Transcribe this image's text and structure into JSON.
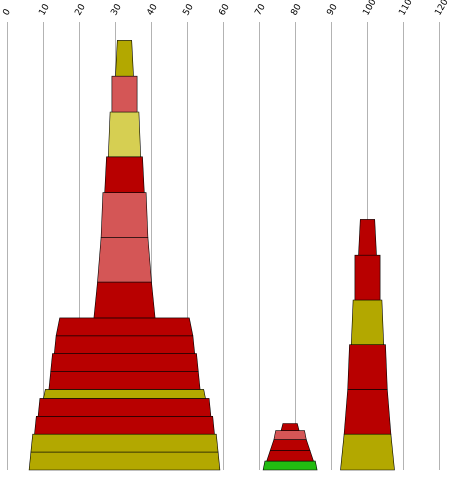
{
  "colors": {
    "dark_red": "#b80000",
    "light_red": "#d45656",
    "olive": "#b3a800",
    "light_olive": "#d6cf52",
    "green": "#22bb11",
    "grid": "#b3b3b3"
  },
  "chart_data": {
    "type": "area",
    "subtype": "stacked trapezoid towers",
    "title": "",
    "xlabel": "",
    "ylabel": "",
    "xlim": [
      0,
      120
    ],
    "x_ticks": [
      "0",
      "10",
      "20",
      "30",
      "40",
      "50",
      "60",
      "70",
      "80",
      "90",
      "100",
      "110",
      "120"
    ],
    "grid": true,
    "legend": "none",
    "stack_units_note": "segment bottom/top widths are in x-axis data units; heights in stack units from baseline",
    "towers": [
      {
        "center": 32.5,
        "segments": [
          {
            "y0": 0.0,
            "y1": 1.0,
            "w0": 53,
            "w1": 52,
            "color": "olive"
          },
          {
            "y0": 1.0,
            "y1": 2.0,
            "w0": 52,
            "w1": 51,
            "color": "olive"
          },
          {
            "y0": 2.0,
            "y1": 3.0,
            "w0": 50,
            "w1": 49,
            "color": "dark_red"
          },
          {
            "y0": 3.0,
            "y1": 4.0,
            "w0": 48,
            "w1": 47,
            "color": "dark_red"
          },
          {
            "y0": 4.0,
            "y1": 4.5,
            "w0": 45,
            "w1": 44,
            "color": "olive"
          },
          {
            "y0": 4.5,
            "y1": 5.5,
            "w0": 42,
            "w1": 41,
            "color": "dark_red"
          },
          {
            "y0": 5.5,
            "y1": 6.5,
            "w0": 41,
            "w1": 40,
            "color": "dark_red"
          },
          {
            "y0": 6.5,
            "y1": 7.5,
            "w0": 39,
            "w1": 38,
            "color": "dark_red"
          },
          {
            "y0": 7.5,
            "y1": 8.5,
            "w0": 38,
            "w1": 36,
            "color": "dark_red"
          },
          {
            "y0": 8.5,
            "y1": 10.5,
            "w0": 17,
            "w1": 15,
            "color": "dark_red"
          },
          {
            "y0": 10.5,
            "y1": 13.0,
            "w0": 15,
            "w1": 13,
            "color": "light_red"
          },
          {
            "y0": 13.0,
            "y1": 15.5,
            "w0": 13,
            "w1": 12,
            "color": "light_red"
          },
          {
            "y0": 15.5,
            "y1": 17.5,
            "w0": 11,
            "w1": 10,
            "color": "dark_red"
          },
          {
            "y0": 17.5,
            "y1": 20.0,
            "w0": 9,
            "w1": 8,
            "color": "light_olive"
          },
          {
            "y0": 20.0,
            "y1": 22.0,
            "w0": 7,
            "w1": 7,
            "color": "light_red"
          },
          {
            "y0": 22.0,
            "y1": 24.0,
            "w0": 5,
            "w1": 4,
            "color": "olive"
          }
        ]
      },
      {
        "center": 78.5,
        "segments": [
          {
            "y0": 0.0,
            "y1": 0.5,
            "w0": 15,
            "w1": 14,
            "color": "green"
          },
          {
            "y0": 0.5,
            "y1": 1.1,
            "w0": 13,
            "w1": 11,
            "color": "dark_red"
          },
          {
            "y0": 1.1,
            "y1": 1.7,
            "w0": 11,
            "w1": 9,
            "color": "dark_red"
          },
          {
            "y0": 1.7,
            "y1": 2.2,
            "w0": 9,
            "w1": 8,
            "color": "light_red"
          },
          {
            "y0": 2.2,
            "y1": 2.6,
            "w0": 5,
            "w1": 4,
            "color": "dark_red"
          }
        ]
      },
      {
        "center": 100,
        "segments": [
          {
            "y0": 0.0,
            "y1": 2.0,
            "w0": 15,
            "w1": 13,
            "color": "olive"
          },
          {
            "y0": 2.0,
            "y1": 4.5,
            "w0": 13,
            "w1": 11,
            "color": "dark_red"
          },
          {
            "y0": 4.5,
            "y1": 7.0,
            "w0": 11,
            "w1": 10,
            "color": "dark_red"
          },
          {
            "y0": 7.0,
            "y1": 9.5,
            "w0": 9,
            "w1": 8,
            "color": "olive"
          },
          {
            "y0": 9.5,
            "y1": 12.0,
            "w0": 7,
            "w1": 7,
            "color": "dark_red"
          },
          {
            "y0": 12.0,
            "y1": 14.0,
            "w0": 5,
            "w1": 4,
            "color": "dark_red"
          }
        ]
      }
    ]
  }
}
